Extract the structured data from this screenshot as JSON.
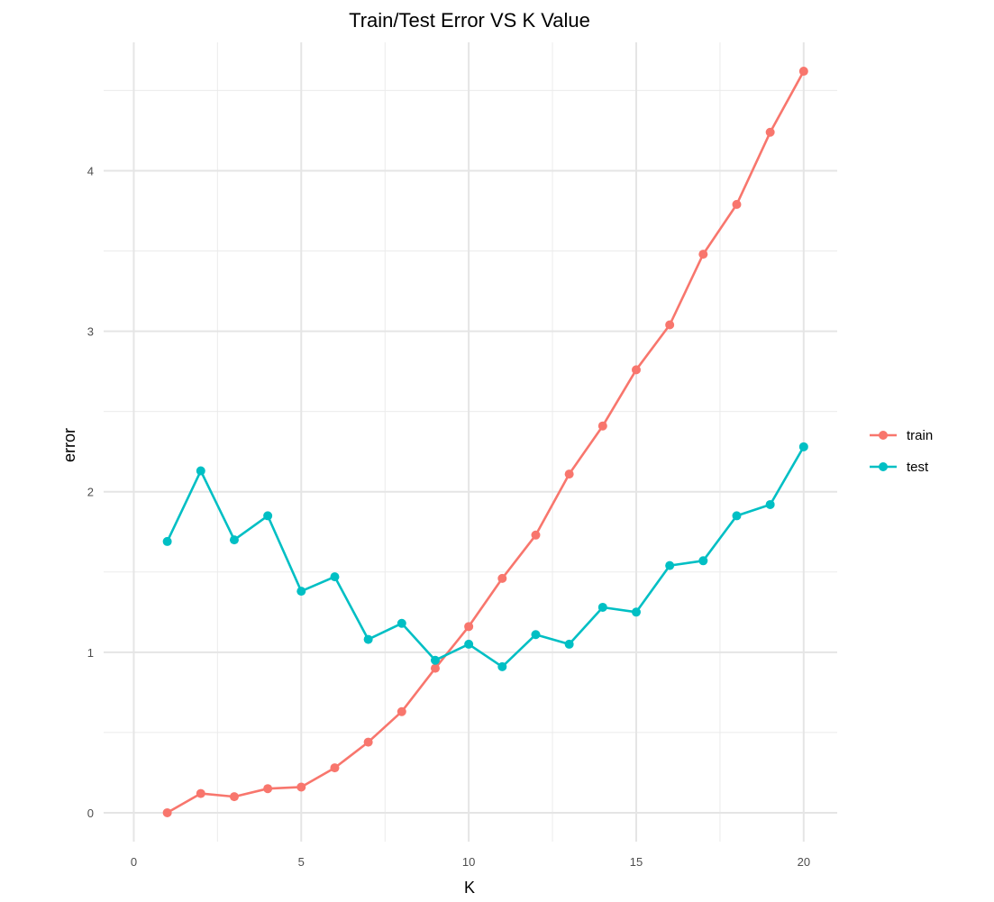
{
  "chart_data": {
    "type": "line",
    "title": "Train/Test Error VS K Value",
    "xlabel": "K",
    "ylabel": "error",
    "xlim": [
      -0.9,
      21.0
    ],
    "ylim": [
      -0.18,
      4.8
    ],
    "x_ticks": [
      0,
      5,
      10,
      15,
      20
    ],
    "x_tick_labels": [
      "0",
      "5",
      "10",
      "15",
      "20"
    ],
    "y_ticks": [
      0,
      1,
      2,
      3,
      4
    ],
    "y_tick_labels": [
      "0",
      "1",
      "2",
      "3",
      "4"
    ],
    "x_minor_ticks": [
      2.5,
      7.5,
      12.5,
      17.5
    ],
    "y_minor_ticks": [
      0.5,
      1.5,
      2.5,
      3.5,
      4.5
    ],
    "grid": true,
    "legend_position": "right",
    "x": [
      1,
      2,
      3,
      4,
      5,
      6,
      7,
      8,
      9,
      10,
      11,
      12,
      13,
      14,
      15,
      16,
      17,
      18,
      19,
      20
    ],
    "series": [
      {
        "name": "train",
        "color": "#F8766D",
        "values": [
          0.0,
          0.12,
          0.1,
          0.15,
          0.16,
          0.28,
          0.44,
          0.63,
          0.9,
          1.16,
          1.46,
          1.73,
          2.11,
          2.41,
          2.76,
          3.04,
          3.48,
          3.79,
          4.24,
          4.62
        ]
      },
      {
        "name": "test",
        "color": "#00BFC4",
        "values": [
          1.69,
          2.13,
          1.7,
          1.85,
          1.38,
          1.47,
          1.08,
          1.18,
          0.95,
          1.05,
          0.91,
          1.11,
          1.05,
          1.28,
          1.25,
          1.54,
          1.57,
          1.85,
          1.92,
          2.28
        ]
      }
    ]
  }
}
